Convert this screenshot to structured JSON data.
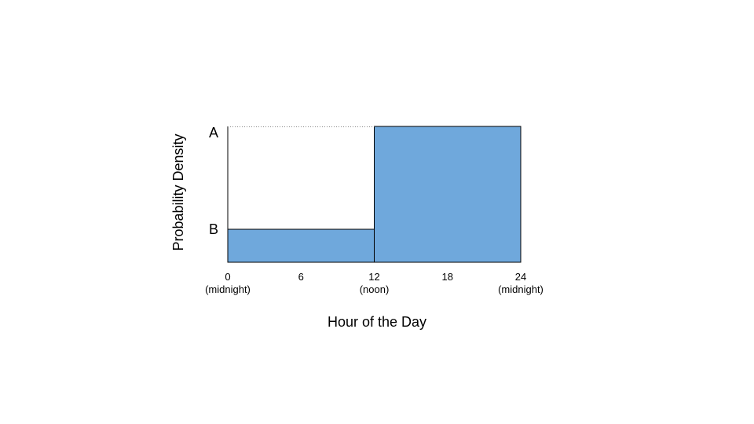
{
  "chart_data": {
    "type": "bar",
    "title": "",
    "xlabel": "Hour of the Day",
    "ylabel": "Probability Density",
    "xlim": [
      0,
      24
    ],
    "x_ticks": [
      {
        "value": 0,
        "label": "0",
        "sublabel": "(midnight)"
      },
      {
        "value": 6,
        "label": "6",
        "sublabel": ""
      },
      {
        "value": 12,
        "label": "12",
        "sublabel": "(noon)"
      },
      {
        "value": 18,
        "label": "18",
        "sublabel": ""
      },
      {
        "value": 24,
        "label": "24",
        "sublabel": "(midnight)"
      }
    ],
    "y_levels": [
      {
        "name": "A",
        "label": "A"
      },
      {
        "name": "B",
        "label": "B"
      }
    ],
    "bars": [
      {
        "x_start": 0,
        "x_end": 12,
        "level": "B"
      },
      {
        "x_start": 12,
        "x_end": 24,
        "level": "A"
      }
    ],
    "reference_line": {
      "level": "A",
      "x_start": 0,
      "x_end": 12,
      "style": "dotted"
    },
    "bar_color": "#6fa8dc",
    "edge_color": "#000000",
    "grid": false,
    "legend": "none"
  }
}
